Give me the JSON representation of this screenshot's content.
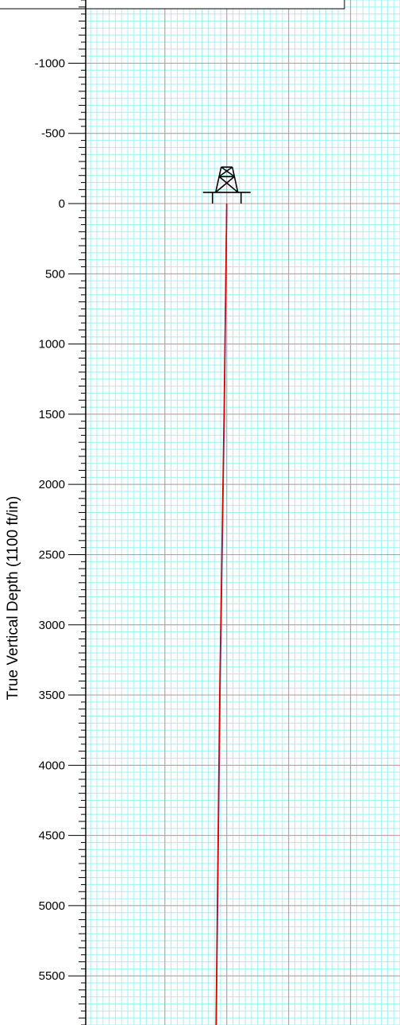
{
  "chart_data": {
    "type": "line",
    "title": "",
    "ylabel": "True Vertical Depth (1100 ft/in)",
    "xlabel": "",
    "y_axis_inverted": true,
    "ylim": [
      -1450,
      5850
    ],
    "xlim": [
      -1140,
      1400
    ],
    "grid": true,
    "y_ticks": [
      -1000,
      -500,
      0,
      500,
      1000,
      1500,
      2000,
      2500,
      3000,
      3500,
      4000,
      4500,
      5000,
      5500
    ],
    "y_tick_labels": [
      "-1000",
      "-500",
      "0",
      "500",
      "1000",
      "1500",
      "2000",
      "2500",
      "3000",
      "3500",
      "4000",
      "4500",
      "5000",
      "5500"
    ],
    "x_major_gridlines": [
      -500,
      0,
      500,
      1000
    ],
    "rig_symbol": {
      "x": 0,
      "y": 0,
      "icon": "drilling-rig-icon"
    },
    "series": [
      {
        "color": "#3355cc",
        "points": [
          [
            0,
            0
          ],
          [
            -20,
            1500
          ],
          [
            -55,
            3500
          ],
          [
            -85,
            5850
          ]
        ]
      },
      {
        "color": "#dd0000",
        "points": [
          [
            0,
            0
          ],
          [
            -22,
            1500
          ],
          [
            -57,
            3500
          ],
          [
            -87,
            5850
          ]
        ]
      }
    ]
  },
  "colors": {
    "minor_grid": "#9ff4f4",
    "major_grid": "#b49a9a",
    "axis": "#000000"
  }
}
